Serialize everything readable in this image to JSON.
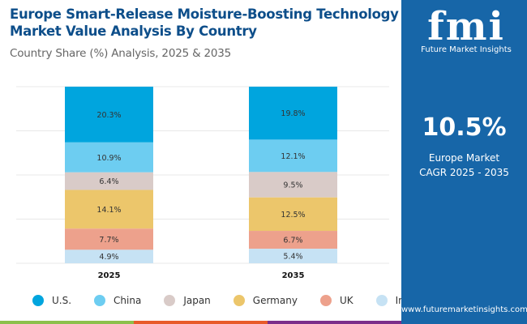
{
  "header": {
    "title": "Europe Smart-Release Moisture-Boosting Technology Market Value Analysis By Country",
    "subtitle": "Country Share (%) Analysis, 2025 & 2035"
  },
  "panel": {
    "logo_mark": "fmi",
    "logo_text": "Future Market Insights",
    "cagr_value": "10.5%",
    "cagr_label_1": "Europe Market",
    "cagr_label_2": "CAGR 2025 - 2035",
    "url": "www.futuremarketinsights.com",
    "background": "#1766a8"
  },
  "chart_data": {
    "type": "bar",
    "stacked": true,
    "categories": [
      "2025",
      "2035"
    ],
    "series": [
      {
        "name": "U.S.",
        "values": [
          20.3,
          19.8
        ],
        "labels": [
          "20.3%",
          "19.8%"
        ],
        "color": "#00a5de"
      },
      {
        "name": "China",
        "values": [
          10.9,
          12.1
        ],
        "labels": [
          "10.9%",
          "12.1%"
        ],
        "color": "#6dcdf1"
      },
      {
        "name": "Japan",
        "values": [
          6.4,
          9.5
        ],
        "labels": [
          "6.4%",
          "9.5%"
        ],
        "color": "#d9cbc8"
      },
      {
        "name": "Germany",
        "values": [
          14.1,
          12.5
        ],
        "labels": [
          "14.1%",
          "12.5%"
        ],
        "color": "#ecc66b"
      },
      {
        "name": "UK",
        "values": [
          7.7,
          6.7
        ],
        "labels": [
          "7.7%",
          "6.7%"
        ],
        "color": "#eda18c"
      },
      {
        "name": "India",
        "values": [
          4.9,
          5.4
        ],
        "labels": [
          "4.9%",
          "5.4%"
        ],
        "color": "#c6e2f4"
      }
    ],
    "legend": "bottom",
    "grid": true
  }
}
